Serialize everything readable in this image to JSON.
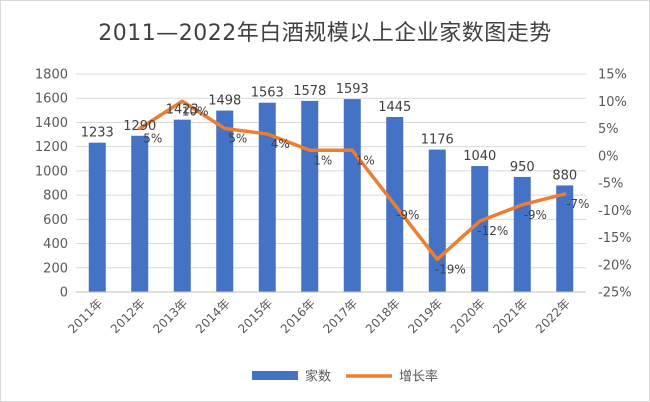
{
  "chart_data": {
    "type": "bar+line",
    "title": "2011—2022年白酒规模以上企业家数图走势",
    "categories": [
      "2011年",
      "2012年",
      "2013年",
      "2014年",
      "2015年",
      "2016年",
      "2017年",
      "2018年",
      "2019年",
      "2020年",
      "2021年",
      "2022年"
    ],
    "series": [
      {
        "name": "家数",
        "type": "bar",
        "axis": "left",
        "color": "#4472C4",
        "values": [
          1233,
          1290,
          1423,
          1498,
          1563,
          1578,
          1593,
          1445,
          1176,
          1040,
          950,
          880
        ],
        "labels": [
          "1233",
          "1290",
          "1423",
          "1498",
          "1563",
          "1578",
          "1593",
          "1445",
          "1176",
          "1040",
          "950",
          "880"
        ]
      },
      {
        "name": "增长率",
        "type": "line",
        "axis": "right",
        "color": "#ED7D31",
        "values": [
          null,
          5,
          10,
          5,
          4,
          1,
          1,
          -9,
          -19,
          -12,
          -9,
          -7
        ],
        "labels": [
          "",
          "5%",
          "10%",
          "5%",
          "4%",
          "1%",
          "1%",
          "-9%",
          "-19%",
          "-12%",
          "-9%",
          "-7%"
        ]
      }
    ],
    "y_left": {
      "min": 0,
      "max": 1800,
      "step": 200,
      "ticks": [
        "0",
        "200",
        "400",
        "600",
        "800",
        "1000",
        "1200",
        "1400",
        "1600",
        "1800"
      ]
    },
    "y_right": {
      "min": -25,
      "max": 15,
      "step": 5,
      "ticks": [
        "-25%",
        "-20%",
        "-15%",
        "-10%",
        "-5%",
        "0%",
        "5%",
        "10%",
        "15%"
      ]
    },
    "grid": true,
    "legend": "bottom"
  }
}
